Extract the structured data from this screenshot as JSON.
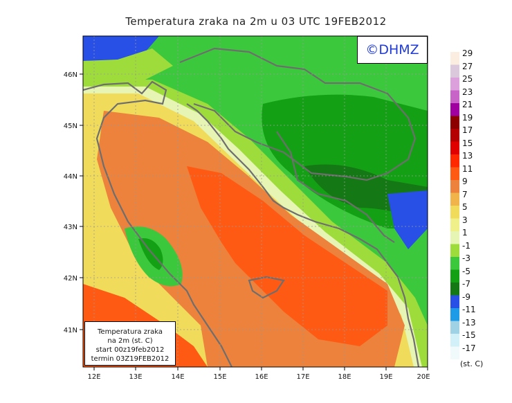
{
  "title": "Temperatura zraka na 2m u 03 UTC 19FEB2012",
  "copyright": "©DHMZ",
  "info_box": {
    "line1": "Temperatura zraka",
    "line2": "na 2m (st. C)",
    "line3": "start 00z19feb2012",
    "line4": "termin 03Z19FEB2012"
  },
  "axes": {
    "lat_labels": [
      "46N",
      "45N",
      "44N",
      "43N",
      "42N",
      "41N"
    ],
    "lon_labels": [
      "12E",
      "13E",
      "14E",
      "15E",
      "16E",
      "17E",
      "18E",
      "19E",
      "20E"
    ]
  },
  "legend": {
    "labels": [
      "29",
      "27",
      "25",
      "23",
      "21",
      "19",
      "17",
      "15",
      "13",
      "11",
      "9",
      "7",
      "5",
      "3",
      "1",
      "-1",
      "-3",
      "-5",
      "-7",
      "-9",
      "-11",
      "-13",
      "-15",
      "-17"
    ],
    "unit": "(st. C)",
    "colors": [
      "#fbeee0",
      "#dcc8dc",
      "#dca0dc",
      "#c864c8",
      "#a000a0",
      "#8c0000",
      "#b40000",
      "#e00000",
      "#ff2800",
      "#ff5a14",
      "#ec823c",
      "#f0b44a",
      "#f0dc5a",
      "#f0f08a",
      "#e6f5b4",
      "#9edc3c",
      "#3cc83c",
      "#14a014",
      "#147814",
      "#2850e6",
      "#1e9be6",
      "#a0d2e6",
      "#d2f0f8",
      "#f0fafa"
    ]
  }
}
